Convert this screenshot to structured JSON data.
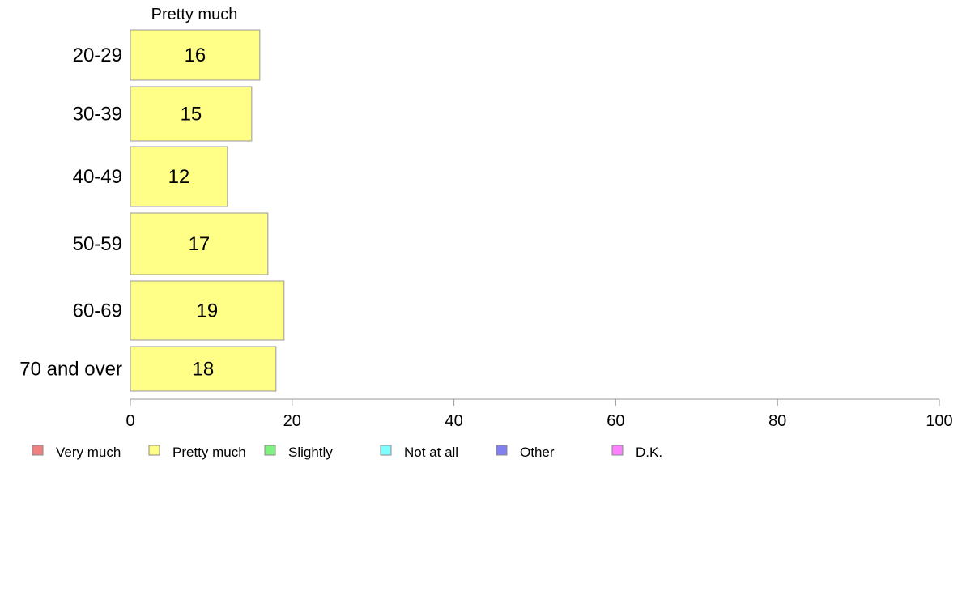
{
  "chart_data": {
    "type": "bar",
    "orientation": "horizontal",
    "series_title": "Pretty much",
    "categories": [
      "20-29",
      "30-39",
      "40-49",
      "50-59",
      "60-69",
      "70 and over"
    ],
    "series": [
      {
        "name": "Pretty much",
        "color": "#ffff88",
        "values": [
          16,
          15,
          12,
          17,
          19,
          18
        ]
      }
    ],
    "xlim": [
      0,
      100
    ],
    "xticks": [
      0,
      20,
      40,
      60,
      80,
      100
    ],
    "grid": false,
    "legend_position": "bottom-left",
    "legend": [
      {
        "label": "Very much",
        "color": "#f08080"
      },
      {
        "label": "Pretty much",
        "color": "#ffff88"
      },
      {
        "label": "Slightly",
        "color": "#80f080"
      },
      {
        "label": "Not at all",
        "color": "#80ffff"
      },
      {
        "label": "Other",
        "color": "#8080f0"
      },
      {
        "label": "D.K.",
        "color": "#ff80ff"
      }
    ]
  }
}
